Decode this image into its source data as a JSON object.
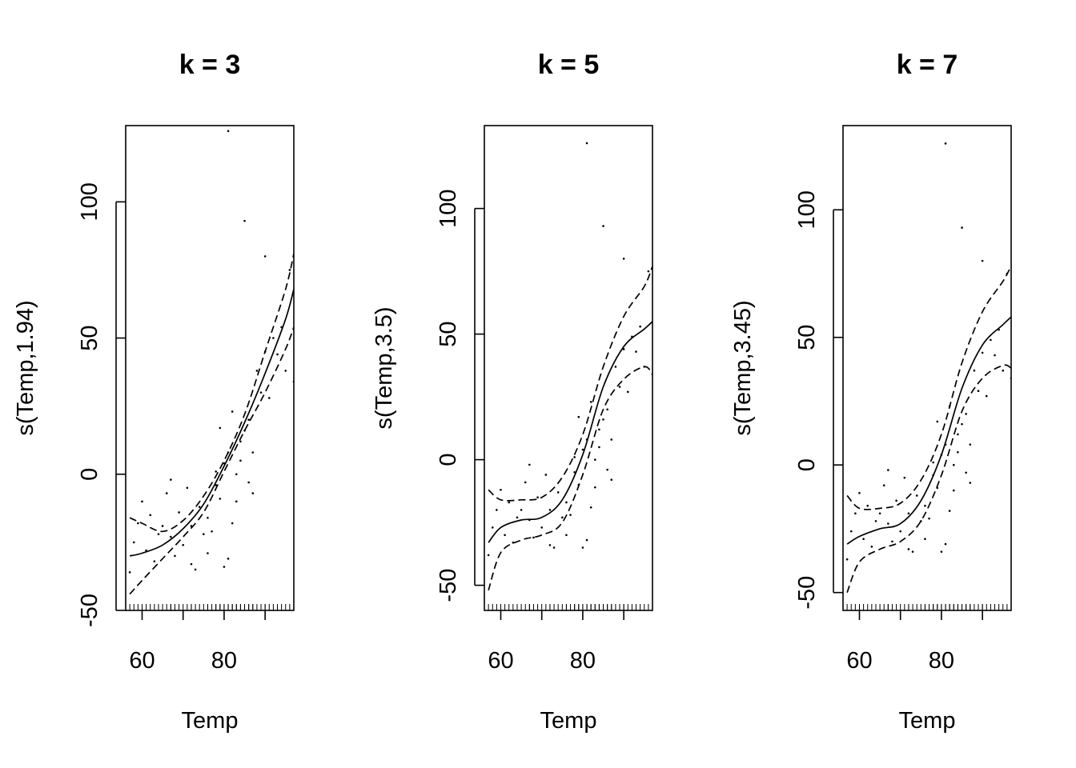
{
  "chart_data": [
    {
      "type": "line",
      "title": "k = 3",
      "xlabel": "Temp",
      "ylabel": "s(Temp,1.94)",
      "xlim": [
        56,
        97
      ],
      "ylim": [
        -50,
        128
      ],
      "xticks": [
        60,
        80
      ],
      "yticks": [
        -50,
        0,
        50,
        100
      ],
      "xtick_labels": [
        "60",
        "80"
      ],
      "ytick_labels": [
        "-50",
        "0",
        "50",
        "100"
      ],
      "grid": false,
      "legend": "none",
      "series": [
        {
          "role": "fit",
          "style": "solid",
          "x": [
            57,
            60,
            65,
            70,
            75,
            80,
            85,
            90,
            95,
            97
          ],
          "y": [
            -30,
            -29,
            -26,
            -20,
            -11,
            3,
            19,
            37,
            57,
            68
          ]
        },
        {
          "role": "upper",
          "style": "dashed",
          "x": [
            57,
            60,
            65,
            70,
            75,
            80,
            85,
            90,
            95,
            97
          ],
          "y": [
            -16,
            -18,
            -21,
            -17,
            -8,
            5,
            22,
            45,
            68,
            81
          ]
        },
        {
          "role": "lower",
          "style": "dashed",
          "x": [
            57,
            60,
            65,
            70,
            75,
            80,
            85,
            90,
            95,
            97
          ],
          "y": [
            -44,
            -39,
            -31,
            -23,
            -14,
            1,
            16,
            30,
            46,
            54
          ]
        }
      ],
      "residuals": {
        "x": [
          57,
          58,
          59,
          60,
          61,
          62,
          63,
          64,
          65,
          66,
          67,
          67,
          68,
          69,
          70,
          71,
          72,
          72,
          73,
          74,
          75,
          76,
          76,
          77,
          78,
          78,
          79,
          79,
          80,
          80,
          81,
          81,
          81,
          82,
          82,
          83,
          83,
          84,
          84,
          85,
          85,
          86,
          86,
          87,
          87,
          88,
          89,
          90,
          90,
          91,
          92,
          93,
          94,
          95,
          96,
          97
        ],
        "y": [
          -36,
          -25,
          -18,
          -10,
          -28,
          -15,
          -32,
          -22,
          -19,
          -7,
          -23,
          -2,
          -30,
          -14,
          -26,
          -5,
          -33,
          -19,
          -35,
          -12,
          -22,
          -29,
          -16,
          -21,
          -4,
          1,
          -9,
          17,
          -34,
          4,
          -31,
          8,
          126,
          -18,
          23,
          0,
          -10,
          12,
          5,
          93,
          16,
          -3,
          20,
          8,
          -7,
          38,
          30,
          80,
          45,
          28,
          50,
          44,
          54,
          38,
          75,
          34
        ]
      }
    },
    {
      "type": "line",
      "title": "k = 5",
      "xlabel": "Temp",
      "ylabel": "s(Temp,3.5)",
      "xlim": [
        56,
        97
      ],
      "ylim": [
        -60,
        133
      ],
      "xticks": [
        60,
        80
      ],
      "yticks": [
        -50,
        0,
        50,
        100
      ],
      "xtick_labels": [
        "60",
        "80"
      ],
      "ytick_labels": [
        "-50",
        "0",
        "50",
        "100"
      ],
      "grid": false,
      "legend": "none",
      "series": [
        {
          "role": "fit",
          "style": "solid",
          "x": [
            57,
            60,
            65,
            70,
            75,
            80,
            85,
            90,
            95,
            97
          ],
          "y": [
            -33,
            -27,
            -24,
            -23,
            -16,
            2,
            29,
            45,
            52,
            55
          ]
        },
        {
          "role": "upper",
          "style": "dashed",
          "x": [
            57,
            60,
            65,
            70,
            75,
            80,
            85,
            90,
            95,
            97
          ],
          "y": [
            -12,
            -16,
            -16,
            -15,
            -7,
            10,
            37,
            57,
            69,
            77
          ]
        },
        {
          "role": "lower",
          "style": "dashed",
          "x": [
            57,
            60,
            65,
            70,
            75,
            80,
            85,
            90,
            95,
            97
          ],
          "y": [
            -52,
            -37,
            -32,
            -30,
            -25,
            -6,
            20,
            32,
            37,
            34
          ]
        }
      ],
      "residuals": {
        "x": [
          57,
          58,
          59,
          60,
          61,
          62,
          63,
          64,
          65,
          66,
          67,
          67,
          68,
          69,
          70,
          71,
          72,
          72,
          73,
          74,
          75,
          76,
          76,
          77,
          78,
          78,
          79,
          79,
          80,
          80,
          81,
          81,
          81,
          82,
          82,
          83,
          83,
          84,
          84,
          85,
          85,
          86,
          86,
          87,
          87,
          88,
          89,
          90,
          90,
          91,
          92,
          93,
          94,
          95,
          96,
          97
        ],
        "y": [
          -38,
          -27,
          -20,
          -12,
          -30,
          -17,
          -33,
          -23,
          -20,
          -9,
          -24,
          -2,
          -31,
          -15,
          -27,
          -6,
          -34,
          -20,
          -35,
          -13,
          -23,
          -30,
          -17,
          -22,
          -5,
          1,
          -10,
          17,
          -35,
          4,
          -32,
          8,
          126,
          -19,
          23,
          0,
          -11,
          12,
          5,
          93,
          16,
          -4,
          20,
          8,
          -8,
          37,
          29,
          80,
          44,
          27,
          49,
          43,
          53,
          37,
          75,
          34
        ]
      }
    },
    {
      "type": "line",
      "title": "k = 7",
      "xlabel": "Temp",
      "ylabel": "s(Temp,3.45)",
      "xlim": [
        56,
        97
      ],
      "ylim": [
        -57,
        133
      ],
      "xticks": [
        60,
        80
      ],
      "yticks": [
        -50,
        0,
        50,
        100
      ],
      "xtick_labels": [
        "60",
        "80"
      ],
      "ytick_labels": [
        "-50",
        "0",
        "50",
        "100"
      ],
      "grid": false,
      "legend": "none",
      "series": [
        {
          "role": "fit",
          "style": "solid",
          "x": [
            57,
            60,
            65,
            70,
            75,
            80,
            85,
            90,
            95,
            97
          ],
          "y": [
            -31,
            -28,
            -25,
            -23,
            -14,
            4,
            30,
            47,
            55,
            58
          ]
        },
        {
          "role": "upper",
          "style": "dashed",
          "x": [
            57,
            60,
            65,
            70,
            75,
            80,
            85,
            90,
            95,
            97
          ],
          "y": [
            -12,
            -17,
            -17,
            -15,
            -6,
            12,
            40,
            60,
            72,
            78
          ]
        },
        {
          "role": "lower",
          "style": "dashed",
          "x": [
            57,
            60,
            65,
            70,
            75,
            80,
            85,
            90,
            95,
            97
          ],
          "y": [
            -50,
            -38,
            -33,
            -30,
            -22,
            -4,
            21,
            34,
            39,
            38
          ]
        }
      ],
      "residuals": {
        "x": [
          57,
          58,
          59,
          60,
          61,
          62,
          63,
          64,
          65,
          66,
          67,
          67,
          68,
          69,
          70,
          71,
          72,
          72,
          73,
          74,
          75,
          76,
          76,
          77,
          78,
          78,
          79,
          79,
          80,
          80,
          81,
          81,
          81,
          82,
          82,
          83,
          83,
          84,
          84,
          85,
          85,
          86,
          86,
          87,
          87,
          88,
          89,
          90,
          90,
          91,
          92,
          93,
          94,
          95,
          96,
          97
        ],
        "y": [
          -37,
          -26,
          -19,
          -11,
          -29,
          -16,
          -32,
          -22,
          -19,
          -8,
          -23,
          -2,
          -30,
          -14,
          -26,
          -5,
          -33,
          -19,
          -34,
          -12,
          -22,
          -29,
          -16,
          -21,
          -4,
          1,
          -9,
          17,
          -34,
          4,
          -31,
          8,
          126,
          -18,
          23,
          0,
          -10,
          12,
          5,
          93,
          16,
          -3,
          20,
          8,
          -7,
          37,
          29,
          80,
          44,
          27,
          49,
          43,
          53,
          37,
          75,
          34
        ]
      }
    }
  ]
}
